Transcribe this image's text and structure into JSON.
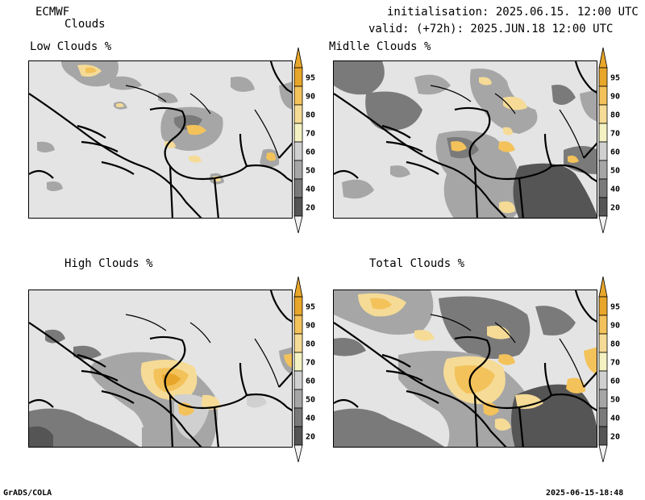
{
  "header": {
    "model": "ECMWF",
    "product": "Clouds",
    "init": "initialisation: 2025.06.15. 12:00 UTC",
    "valid": "valid: (+72h): 2025.JUN.18 12:00 UTC"
  },
  "panels": [
    {
      "title": "Low Clouds %"
    },
    {
      "title": "Midlle Clouds %"
    },
    {
      "title": "High Clouds %"
    },
    {
      "title": "Total Clouds %"
    }
  ],
  "colorbar": {
    "labels": [
      "95",
      "90",
      "80",
      "70",
      "60",
      "50",
      "40",
      "20"
    ],
    "colors": [
      "#e8a62a",
      "#f3c25a",
      "#f5db96",
      "#f4f2c2",
      "#d0d0d0",
      "#a6a6a6",
      "#7a7a7a",
      "#555555"
    ],
    "below_color": "#f2f2f2",
    "above_color": "#e8a62a"
  },
  "footer": {
    "software": "GrADS/COLA",
    "timestamp": "2025-06-15-18:48"
  }
}
